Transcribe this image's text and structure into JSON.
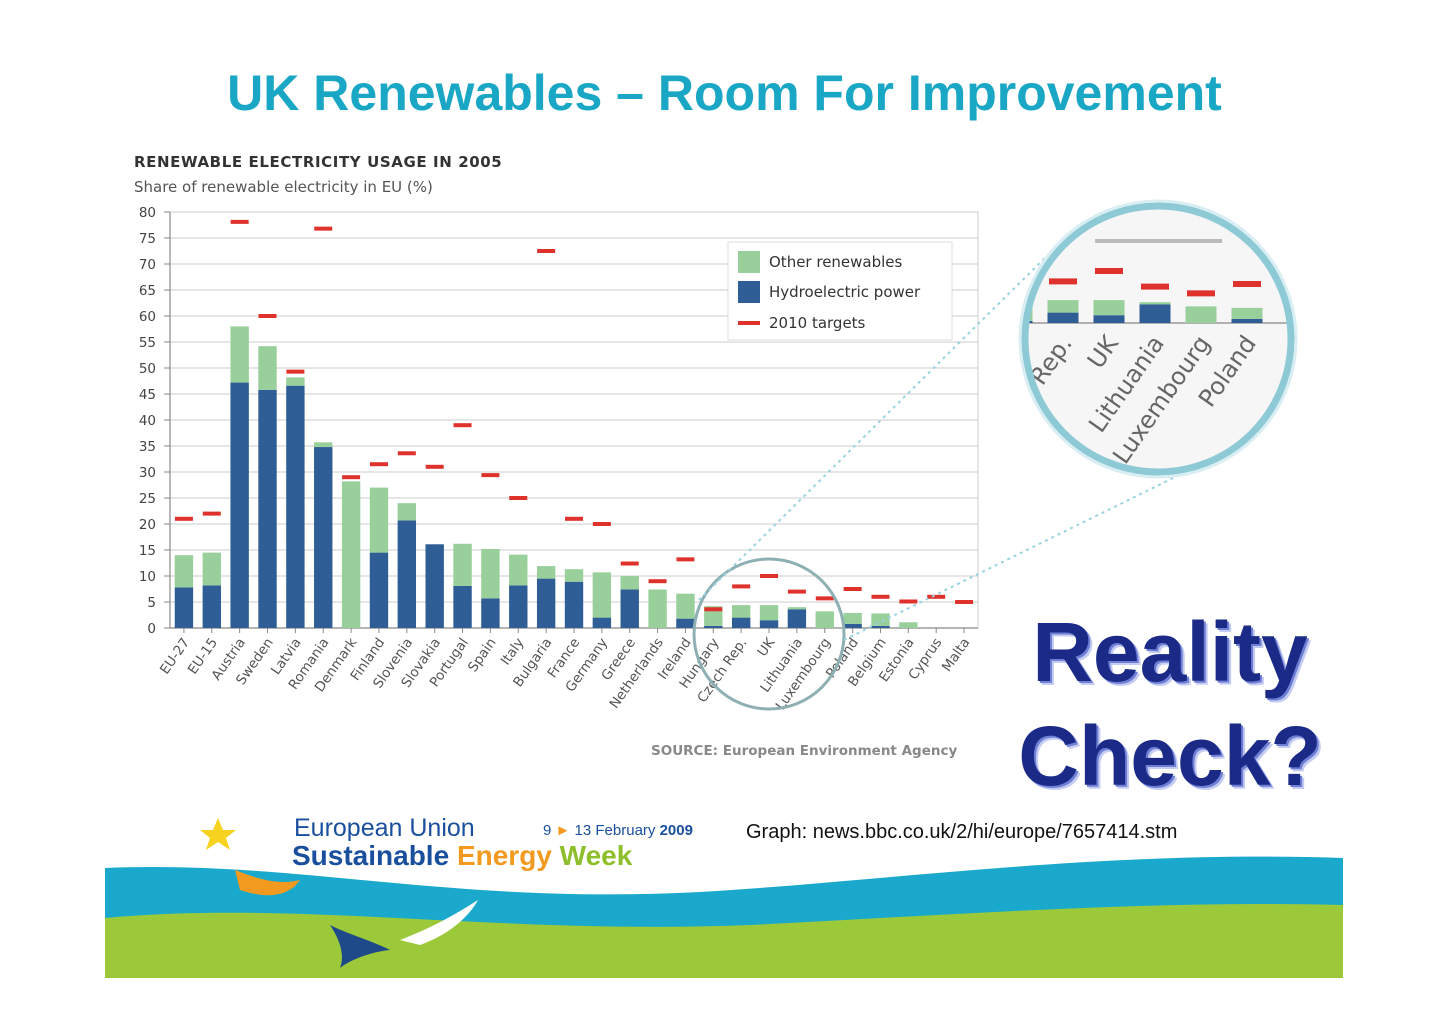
{
  "slide": {
    "title": "UK Renewables – Room For Improvement",
    "reality_check": "Reality Check?",
    "graph_credit": "Graph: news.bbc.co.uk/2/hi/europe/7657414.stm"
  },
  "footer": {
    "eu_line1": "European Union",
    "eu_word_sustainable": "Sustainable",
    "eu_word_energy": "Energy",
    "eu_word_week": "Week",
    "eu_dates_start": "9",
    "eu_dates_end": "13 February",
    "eu_dates_year": "2009"
  },
  "chart_data": {
    "type": "bar",
    "title": "RENEWABLE ELECTRICITY USAGE IN 2005",
    "subtitle": "Share of renewable electricity in EU (%)",
    "source": "SOURCE: European Environment Agency",
    "ylim": [
      0,
      80
    ],
    "yticks": [
      0,
      5,
      10,
      15,
      20,
      25,
      30,
      35,
      40,
      45,
      50,
      55,
      60,
      65,
      70,
      75,
      80
    ],
    "grid": true,
    "legend_position": "top-right",
    "categories": [
      "EU-27",
      "EU-15",
      "Austria",
      "Sweden",
      "Latvia",
      "Romania",
      "Denmark",
      "Finland",
      "Slovenia",
      "Slovakia",
      "Portugal",
      "Spain",
      "Italy",
      "Bulgaria",
      "France",
      "Germany",
      "Greece",
      "Netherlands",
      "Ireland",
      "Hungary",
      "Czech Rep.",
      "UK",
      "Lithuania",
      "Luxembourg",
      "Poland",
      "Belgium",
      "Estonia",
      "Cyprus",
      "Malta"
    ],
    "series": [
      {
        "name": "Hydroelectric power",
        "color": "#2e5e95",
        "values": [
          7.8,
          8.2,
          47.2,
          45.8,
          46.6,
          34.8,
          0,
          14.5,
          20.7,
          16.1,
          8.1,
          5.7,
          8.2,
          9.5,
          8.9,
          2.0,
          7.4,
          0,
          1.8,
          0.4,
          2.0,
          1.5,
          3.6,
          0,
          0.8,
          0.4,
          0,
          0,
          0
        ]
      },
      {
        "name": "Other renewables",
        "color": "#98cf9b",
        "values": [
          6.2,
          6.3,
          10.8,
          8.4,
          1.6,
          0.9,
          28.2,
          12.5,
          3.3,
          0,
          8.1,
          9.5,
          5.9,
          2.4,
          2.4,
          8.7,
          2.6,
          7.4,
          4.8,
          3.8,
          2.4,
          2.9,
          0.4,
          3.2,
          2.1,
          2.4,
          1.1,
          0,
          0
        ]
      },
      {
        "name": "2010 targets",
        "color": "#e0322d",
        "values": [
          21.0,
          22.0,
          78.1,
          60.0,
          49.3,
          76.8,
          29.0,
          31.5,
          33.6,
          31.0,
          39.0,
          29.4,
          25.0,
          72.5,
          21.0,
          20.0,
          12.4,
          9.0,
          13.2,
          3.6,
          8.0,
          10.0,
          7.0,
          5.7,
          7.5,
          6.0,
          5.1,
          6.0,
          5.0
        ]
      }
    ],
    "inset": {
      "categories": [
        "Rep.",
        "UK",
        "Lithuania",
        "Luxembourg",
        "Poland"
      ]
    }
  }
}
